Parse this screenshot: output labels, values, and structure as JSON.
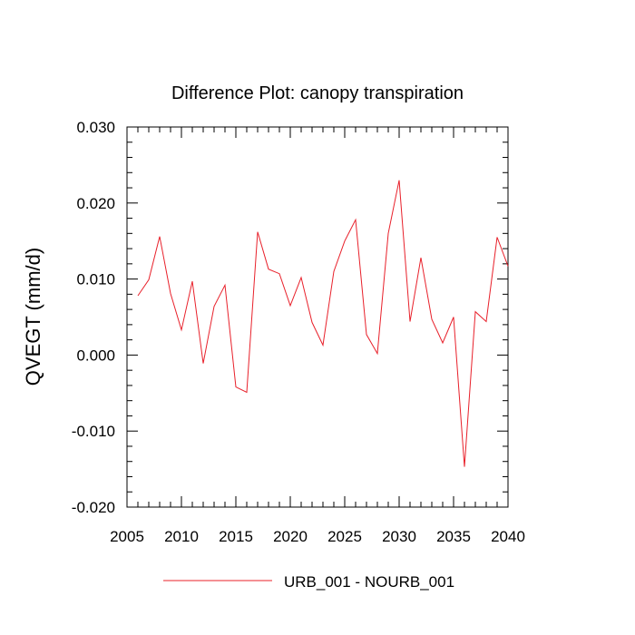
{
  "chart_data": {
    "type": "line",
    "title": "Difference Plot: canopy transpiration",
    "xlabel": "",
    "ylabel": "QVEGT  (mm/d)",
    "xlim": [
      2005,
      2040
    ],
    "ylim": [
      -0.02,
      0.03
    ],
    "x_ticks": [
      2005,
      2010,
      2015,
      2020,
      2025,
      2030,
      2035,
      2040
    ],
    "x_tick_labels": [
      "2005",
      "2010",
      "2015",
      "2020",
      "2025",
      "2030",
      "2035",
      "2040"
    ],
    "y_ticks": [
      -0.02,
      -0.01,
      0.0,
      0.01,
      0.02,
      0.03
    ],
    "y_tick_labels": [
      "-0.020",
      "-0.010",
      "0.000",
      "0.010",
      "0.020",
      "0.030"
    ],
    "x_minor_step": 1,
    "y_minor_step": 0.002,
    "grid": false,
    "legend_position": "bottom",
    "x": [
      2006,
      2007,
      2008,
      2009,
      2010,
      2011,
      2012,
      2013,
      2014,
      2015,
      2016,
      2017,
      2018,
      2019,
      2020,
      2021,
      2022,
      2023,
      2024,
      2025,
      2026,
      2027,
      2028,
      2029,
      2030,
      2031,
      2032,
      2033,
      2034,
      2035,
      2036,
      2037,
      2038,
      2039,
      2040
    ],
    "series": [
      {
        "name": "URB_001 - NOURB_001",
        "color": "#e8202a",
        "values": [
          0.0078,
          0.0099,
          0.0156,
          0.0081,
          0.0033,
          0.0097,
          -0.0011,
          0.0064,
          0.0092,
          -0.0042,
          -0.0049,
          0.0162,
          0.0113,
          0.0107,
          0.0065,
          0.0102,
          0.0043,
          0.0013,
          0.011,
          0.015,
          0.0178,
          0.0027,
          0.0002,
          0.016,
          0.023,
          0.0044,
          0.0128,
          0.0047,
          0.0016,
          0.005,
          -0.0147,
          0.0057,
          0.0044,
          0.0155,
          0.0117
        ]
      }
    ]
  }
}
